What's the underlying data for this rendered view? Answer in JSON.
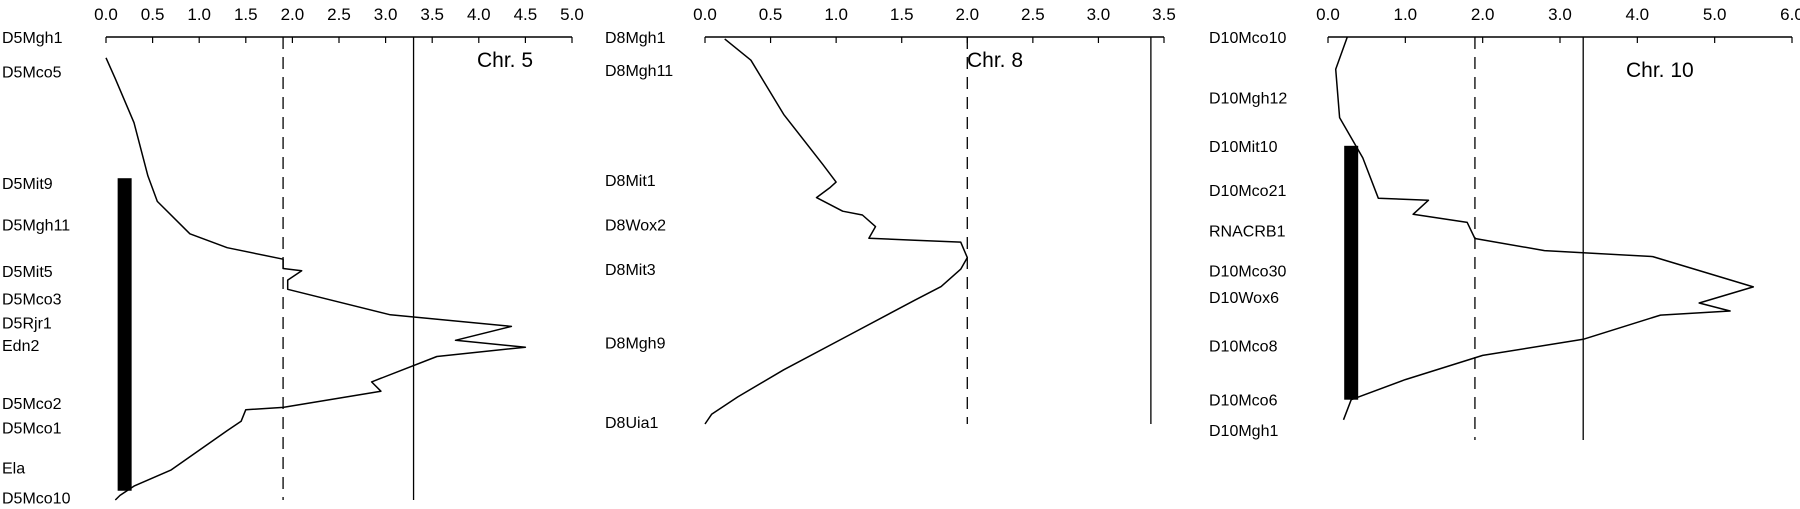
{
  "chart_data": [
    {
      "type": "line",
      "title": "Chr. 5",
      "xlim": [
        0,
        5
      ],
      "xticks": [
        "0.0",
        "0.5",
        "1.0",
        "1.5",
        "2.0",
        "2.5",
        "3.0",
        "3.5",
        "4.0",
        "4.5",
        "5.0"
      ],
      "thresholds": {
        "dashed": 1.9,
        "solid": 3.3
      },
      "ylim": [
        0,
        1
      ],
      "markers": [
        {
          "name": "D5Mgh1",
          "pos": 0.0
        },
        {
          "name": "D5Mco5",
          "pos": 0.075
        },
        {
          "name": "D5Mit9",
          "pos": 0.315
        },
        {
          "name": "D5Mgh11",
          "pos": 0.405
        },
        {
          "name": "D5Mit5",
          "pos": 0.505
        },
        {
          "name": "D5Mco3",
          "pos": 0.565
        },
        {
          "name": "D5Rjr1",
          "pos": 0.617
        },
        {
          "name": "Edn2",
          "pos": 0.665
        },
        {
          "name": "D5Mco2",
          "pos": 0.79
        },
        {
          "name": "D5Mco1",
          "pos": 0.843
        },
        {
          "name": "Ela",
          "pos": 0.93
        },
        {
          "name": "D5Mco10",
          "pos": 0.995
        }
      ],
      "ci": {
        "x": 0.2,
        "start": 0.305,
        "end": 0.98
      },
      "series": [
        {
          "values": [
            [
              0.0,
              0.045
            ],
            [
              0.1,
              0.09
            ],
            [
              0.3,
              0.185
            ],
            [
              0.45,
              0.3
            ],
            [
              0.55,
              0.355
            ],
            [
              0.9,
              0.425
            ],
            [
              1.3,
              0.455
            ],
            [
              1.9,
              0.48
            ],
            [
              1.9,
              0.5
            ],
            [
              2.1,
              0.505
            ],
            [
              1.95,
              0.525
            ],
            [
              1.95,
              0.545
            ],
            [
              3.05,
              0.6
            ],
            [
              4.35,
              0.625
            ],
            [
              3.75,
              0.655
            ],
            [
              4.5,
              0.67
            ],
            [
              3.55,
              0.69
            ],
            [
              2.85,
              0.745
            ],
            [
              2.95,
              0.765
            ],
            [
              1.9,
              0.8
            ],
            [
              1.5,
              0.805
            ],
            [
              1.45,
              0.83
            ],
            [
              1.3,
              0.85
            ],
            [
              0.7,
              0.935
            ],
            [
              0.3,
              0.97
            ],
            [
              0.15,
              0.99
            ],
            [
              0.1,
              1.0
            ]
          ]
        }
      ]
    },
    {
      "type": "line",
      "title": "Chr. 8",
      "xlim": [
        0,
        3.5
      ],
      "xticks": [
        "0.0",
        "0.5",
        "1.0",
        "1.5",
        "2.0",
        "2.5",
        "3.0",
        "3.5"
      ],
      "thresholds": {
        "dashed": 2.0,
        "solid": 3.4
      },
      "ylim": [
        0,
        1
      ],
      "markers": [
        {
          "name": "D8Mgh1",
          "pos": 0.0
        },
        {
          "name": "D8Mgh11",
          "pos": 0.085
        },
        {
          "name": "D8Mit1",
          "pos": 0.37
        },
        {
          "name": "D8Wox2",
          "pos": 0.485
        },
        {
          "name": "D8Mit3",
          "pos": 0.6
        },
        {
          "name": "D8Mgh9",
          "pos": 0.79
        },
        {
          "name": "D8Uia1",
          "pos": 0.995
        }
      ],
      "series": [
        {
          "values": [
            [
              0.15,
              0.005
            ],
            [
              0.35,
              0.06
            ],
            [
              0.6,
              0.2
            ],
            [
              0.9,
              0.33
            ],
            [
              1.0,
              0.375
            ],
            [
              0.95,
              0.39
            ],
            [
              0.85,
              0.415
            ],
            [
              1.05,
              0.45
            ],
            [
              1.2,
              0.46
            ],
            [
              1.3,
              0.49
            ],
            [
              1.25,
              0.52
            ],
            [
              1.6,
              0.525
            ],
            [
              1.95,
              0.53
            ],
            [
              2.0,
              0.57
            ],
            [
              1.95,
              0.6
            ],
            [
              1.8,
              0.645
            ],
            [
              1.6,
              0.68
            ],
            [
              1.1,
              0.77
            ],
            [
              0.6,
              0.86
            ],
            [
              0.25,
              0.93
            ],
            [
              0.05,
              0.975
            ],
            [
              0.0,
              1.0
            ]
          ]
        }
      ]
    },
    {
      "type": "line",
      "title": "Chr. 10",
      "xlim": [
        0,
        6
      ],
      "xticks": [
        "0.0",
        "1.0",
        "2.0",
        "3.0",
        "4.0",
        "5.0",
        "6.0"
      ],
      "thresholds": {
        "dashed": 1.9,
        "solid": 3.3
      },
      "ylim": [
        0,
        1
      ],
      "markers": [
        {
          "name": "D10Mco10",
          "pos": 0.0
        },
        {
          "name": "D10Mgh12",
          "pos": 0.15
        },
        {
          "name": "D10Mit10",
          "pos": 0.27
        },
        {
          "name": "D10Mco21",
          "pos": 0.38
        },
        {
          "name": "RNACRB1",
          "pos": 0.48
        },
        {
          "name": "D10Mco30",
          "pos": 0.58
        },
        {
          "name": "D10Wox6",
          "pos": 0.645
        },
        {
          "name": "D10Mco8",
          "pos": 0.765
        },
        {
          "name": "D10Mco6",
          "pos": 0.9
        },
        {
          "name": "D10Mgh1",
          "pos": 0.975
        }
      ],
      "ci": {
        "x": 0.3,
        "start": 0.27,
        "end": 0.9
      },
      "series": [
        {
          "values": [
            [
              0.25,
              0.0
            ],
            [
              0.1,
              0.08
            ],
            [
              0.15,
              0.2
            ],
            [
              0.45,
              0.3
            ],
            [
              0.65,
              0.4
            ],
            [
              1.3,
              0.405
            ],
            [
              1.1,
              0.44
            ],
            [
              1.8,
              0.46
            ],
            [
              1.9,
              0.5
            ],
            [
              2.8,
              0.53
            ],
            [
              4.2,
              0.545
            ],
            [
              5.5,
              0.62
            ],
            [
              4.8,
              0.66
            ],
            [
              5.2,
              0.68
            ],
            [
              4.3,
              0.69
            ],
            [
              3.3,
              0.75
            ],
            [
              2.0,
              0.79
            ],
            [
              1.0,
              0.85
            ],
            [
              0.3,
              0.9
            ],
            [
              0.2,
              0.95
            ]
          ]
        }
      ]
    }
  ]
}
